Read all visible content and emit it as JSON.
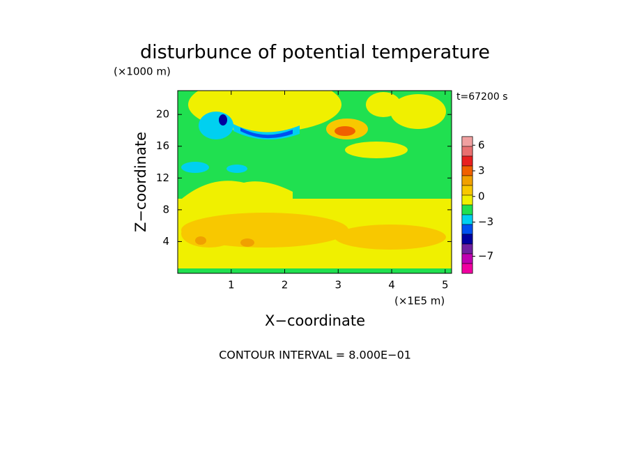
{
  "chart_data": {
    "type": "contour",
    "title": "disturbunce of potential temperature",
    "y_unit": "(×1000 m)",
    "x_unit": "(×1E5 m)",
    "xlabel": "X−coordinate",
    "ylabel": "Z−coordinate",
    "time_label": "t=67200 s",
    "footer": "CONTOUR INTERVAL = 8.000E−01",
    "xlim": [
      0,
      5.12
    ],
    "xticks": [
      1,
      2,
      3,
      4,
      5
    ],
    "ylim": [
      0,
      23
    ],
    "yticks": [
      4,
      8,
      12,
      16,
      20
    ],
    "colorbar": {
      "clim": [
        -9,
        7
      ],
      "ticks": [
        {
          "value": 6,
          "label": "6"
        },
        {
          "value": 3,
          "label": "3"
        },
        {
          "value": 0,
          "label": "0"
        },
        {
          "value": -3,
          "label": "−3"
        },
        {
          "value": -7,
          "label": "−7"
        }
      ],
      "colors": [
        "#f0a0a0",
        "#e87070",
        "#e82020",
        "#f06000",
        "#f0a000",
        "#f8c800",
        "#f0f000",
        "#20e050",
        "#00d0f0",
        "#0050f0",
        "#0000a0",
        "#7020a0",
        "#c000b0",
        "#f000a0"
      ]
    }
  }
}
